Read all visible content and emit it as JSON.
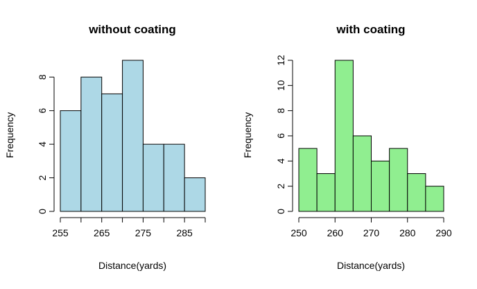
{
  "chart_data": [
    {
      "type": "bar",
      "title": "without coating",
      "xlabel": "Distance(yards)",
      "ylabel": "Frequency",
      "bin_edges": [
        255,
        260,
        265,
        270,
        275,
        280,
        285,
        290
      ],
      "values": [
        6,
        8,
        7,
        9,
        4,
        4,
        2
      ],
      "xlim": [
        255,
        290
      ],
      "ylim": [
        0,
        9
      ],
      "x_tick_values": [
        255,
        260,
        265,
        270,
        275,
        280,
        285,
        290
      ],
      "x_tick_labels": [
        "255",
        "",
        "265",
        "",
        "275",
        "",
        "285",
        ""
      ],
      "y_tick_values": [
        0,
        2,
        4,
        6,
        8
      ],
      "y_tick_labels": [
        "0",
        "2",
        "4",
        "6",
        "8"
      ],
      "fill_color": "#add8e6",
      "grid": false
    },
    {
      "type": "bar",
      "title": "with coating",
      "xlabel": "Distance(yards)",
      "ylabel": "Frequency",
      "bin_edges": [
        250,
        255,
        260,
        265,
        270,
        275,
        280,
        285,
        290
      ],
      "values": [
        5,
        3,
        12,
        6,
        4,
        5,
        3,
        2
      ],
      "xlim": [
        250,
        290
      ],
      "ylim": [
        0,
        12
      ],
      "x_tick_values": [
        250,
        260,
        270,
        280,
        290
      ],
      "x_tick_labels": [
        "250",
        "260",
        "270",
        "280",
        "290"
      ],
      "y_tick_values": [
        0,
        2,
        4,
        6,
        8,
        10,
        12
      ],
      "y_tick_labels": [
        "0",
        "2",
        "4",
        "6",
        "8",
        "10",
        "12"
      ],
      "fill_color": "#90ee90",
      "grid": false
    }
  ]
}
